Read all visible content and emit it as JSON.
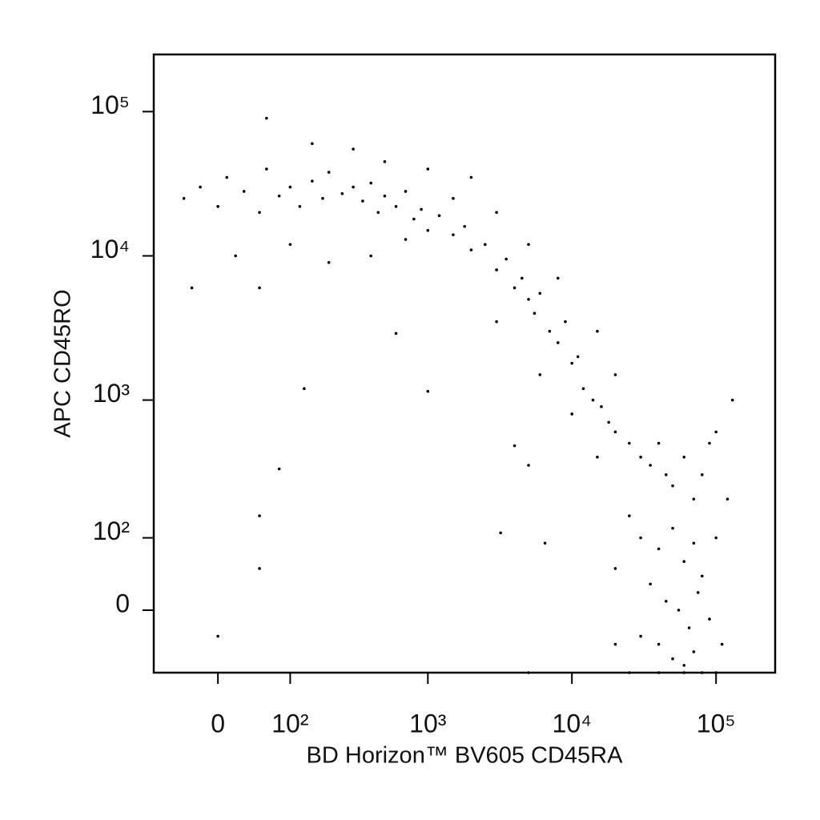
{
  "chart_data": {
    "type": "scatter",
    "x_label": "BD Horizon™ BV605 CD45RA",
    "y_label": "APC CD45RO",
    "xscale": "biexponential",
    "yscale": "biexponential",
    "color": "#000000",
    "xlim": [
      -85,
      257000
    ],
    "ylim": [
      -82,
      249000
    ],
    "xticks": [
      0,
      {
        "value": 100,
        "label": "10²"
      },
      {
        "value": 1000,
        "label": "10³"
      },
      {
        "value": 10000,
        "label": "10⁴"
      },
      {
        "value": 100000,
        "label": "10⁵"
      }
    ],
    "yticks": [
      0,
      {
        "value": 100,
        "label": "10²"
      },
      {
        "value": 1000,
        "label": "10³"
      },
      {
        "value": 10000,
        "label": "10⁴"
      },
      {
        "value": 100000,
        "label": "10⁵"
      }
    ],
    "x": [
      -40,
      -20,
      0,
      10,
      30,
      50,
      60,
      80,
      100,
      120,
      150,
      180,
      200,
      250,
      300,
      350,
      400,
      450,
      500,
      600,
      700,
      800,
      900,
      1000,
      1200,
      1500,
      1800,
      2000,
      2500,
      3000,
      3500,
      4000,
      4500,
      5000,
      5500,
      6000,
      7000,
      8000,
      9000,
      10000,
      11000,
      12000,
      14000,
      16000,
      18000,
      20000,
      25000,
      30000,
      35000,
      40000,
      45000,
      50000,
      60000,
      70000,
      80000,
      90000,
      100000,
      25000,
      30000,
      40000,
      50000,
      60000,
      70000,
      80000,
      35000,
      45000,
      55000,
      65000,
      75000,
      90000,
      40000,
      50000,
      60000,
      70000,
      30000,
      20000,
      100000,
      110000,
      120000,
      100,
      200,
      50,
      20,
      -30,
      400,
      700,
      1500,
      3000,
      500,
      300,
      150,
      60,
      1000,
      2000,
      5000,
      8000,
      15000,
      20000,
      3000,
      6000,
      10000,
      15000,
      130000,
      130,
      1000,
      80,
      50,
      50,
      0,
      3200,
      6500,
      4000,
      5000,
      600,
      20000,
      5000,
      40000,
      80000,
      100000,
      25000,
      60000
    ],
    "values": [
      25000,
      30000,
      22000,
      35000,
      28000,
      20000,
      40000,
      26000,
      30000,
      22000,
      33000,
      25000,
      38000,
      27000,
      30000,
      24000,
      32000,
      20000,
      26000,
      22000,
      28000,
      18000,
      21000,
      15000,
      19000,
      14000,
      16000,
      11000,
      12000,
      8000,
      9500,
      6000,
      7000,
      5000,
      4000,
      5500,
      3000,
      2500,
      3500,
      1800,
      2000,
      1200,
      1000,
      900,
      700,
      600,
      500,
      400,
      350,
      500,
      300,
      250,
      400,
      200,
      300,
      500,
      600,
      150,
      100,
      80,
      120,
      60,
      90,
      40,
      30,
      10,
      0,
      -20,
      20,
      -10,
      -40,
      -60,
      -70,
      -50,
      -30,
      50,
      100,
      -40,
      200,
      12000,
      9000,
      6000,
      10000,
      6000,
      10000,
      13000,
      25000,
      20000,
      45000,
      55000,
      60000,
      90000,
      40000,
      35000,
      12000,
      7000,
      3000,
      1500,
      3500,
      1500,
      800,
      400,
      1000,
      1200,
      1150,
      330,
      150,
      50,
      -30,
      110,
      90,
      480,
      350,
      2900,
      -40,
      -82,
      -82,
      -82,
      -82,
      -82,
      -82
    ]
  }
}
